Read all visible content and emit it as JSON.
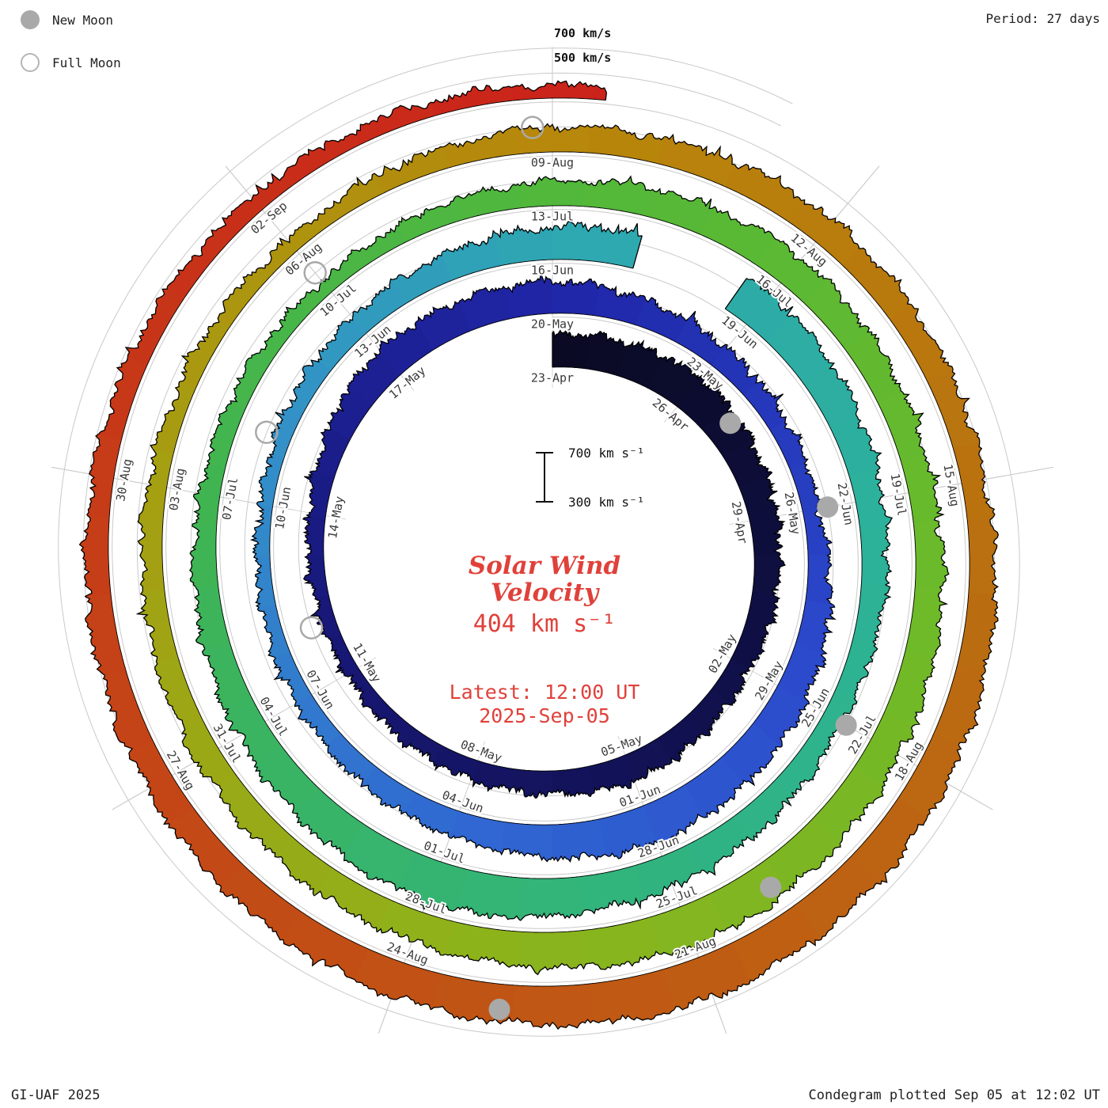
{
  "colors": {
    "accent_red": "#e0413a",
    "label_gray": "#3a3a3a",
    "grid": "#c9c9c9",
    "moon_gray": "#a9a9a9",
    "edge": "#000000",
    "text": "#222222"
  },
  "legend": {
    "new_moon": "New Moon",
    "full_moon": "Full Moon"
  },
  "header": {
    "period": "Period: 27 days"
  },
  "grid_labels": {
    "outer": "700 km/s",
    "inner": "500 km/s"
  },
  "scalebar": {
    "top": "700 km s⁻¹",
    "bottom": "300 km s⁻¹"
  },
  "center": {
    "title_line1": "Solar Wind",
    "title_line2": "Velocity",
    "value": "404 km s⁻¹",
    "latest_line1": "Latest: 12:00 UT",
    "latest_line2": "2025-Sep-05"
  },
  "footer": {
    "credit": "GI-UAF 2025",
    "plotted": "Condegram plotted Sep 05 at 12:02 UT"
  },
  "chart_data": {
    "type": "area",
    "variant": "condegram-spiral",
    "title": "Solar Wind Velocity",
    "units": "km/s",
    "period_days": 27,
    "start_date": "2025-04-23",
    "end_datetime": "2025-09-05 12:00 UT",
    "total_days": 135.5,
    "baseline_kms": 300,
    "latest_kms": 404,
    "grid_levels_kms": [
      500,
      700
    ],
    "velocity_range_kms": [
      300,
      700
    ],
    "data_gaps": [
      [
        55.2,
        56.6
      ]
    ],
    "samples": [
      {
        "d": 0,
        "label": "23-Apr",
        "v": 560
      },
      {
        "d": 3,
        "label": "26-Apr",
        "v": 600
      },
      {
        "d": 6,
        "label": "29-Apr",
        "v": 520
      },
      {
        "d": 9,
        "label": "02-May",
        "v": 470
      },
      {
        "d": 12,
        "label": "05-May",
        "v": 520
      },
      {
        "d": 15,
        "label": "08-May",
        "v": 455
      },
      {
        "d": 18,
        "label": "11-May",
        "v": 405
      },
      {
        "d": 21,
        "label": "14-May",
        "v": 435
      },
      {
        "d": 24,
        "label": "17-May",
        "v": 560
      },
      {
        "d": 27,
        "label": "20-May",
        "v": 555
      },
      {
        "d": 30,
        "label": "23-May",
        "v": 480
      },
      {
        "d": 33,
        "label": "26-May",
        "v": 430
      },
      {
        "d": 36,
        "label": "29-May",
        "v": 560
      },
      {
        "d": 39,
        "label": "01-Jun",
        "v": 620
      },
      {
        "d": 42,
        "label": "04-Jun",
        "v": 505
      },
      {
        "d": 45,
        "label": "07-Jun",
        "v": 440
      },
      {
        "d": 48,
        "label": "10-Jun",
        "v": 400
      },
      {
        "d": 51,
        "label": "13-Jun",
        "v": 470
      },
      {
        "d": 54,
        "label": "16-Jun",
        "v": 560
      },
      {
        "d": 57,
        "label": "19-Jun",
        "v": 610
      },
      {
        "d": 60,
        "label": "22-Jun",
        "v": 520
      },
      {
        "d": 63,
        "label": "25-Jun",
        "v": 460
      },
      {
        "d": 66,
        "label": "28-Jun",
        "v": 560
      },
      {
        "d": 69,
        "label": "01-Jul",
        "v": 640
      },
      {
        "d": 72,
        "label": "04-Jul",
        "v": 540
      },
      {
        "d": 75,
        "label": "07-Jul",
        "v": 460
      },
      {
        "d": 78,
        "label": "10-Jul",
        "v": 410
      },
      {
        "d": 81,
        "label": "13-Jul",
        "v": 500
      },
      {
        "d": 84,
        "label": "16-Jul",
        "v": 560
      },
      {
        "d": 87,
        "label": "19-Jul",
        "v": 500
      },
      {
        "d": 90,
        "label": "22-Jul",
        "v": 560
      },
      {
        "d": 93,
        "label": "25-Jul",
        "v": 630
      },
      {
        "d": 96,
        "label": "28-Jul",
        "v": 540
      },
      {
        "d": 99,
        "label": "31-Jul",
        "v": 500
      },
      {
        "d": 102,
        "label": "03-Aug",
        "v": 450
      },
      {
        "d": 105,
        "label": "06-Aug",
        "v": 410
      },
      {
        "d": 108,
        "label": "09-Aug",
        "v": 500
      },
      {
        "d": 111,
        "label": "12-Aug",
        "v": 520
      },
      {
        "d": 114,
        "label": "15-Aug",
        "v": 480
      },
      {
        "d": 117,
        "label": "18-Aug",
        "v": 570
      },
      {
        "d": 120,
        "label": "21-Aug",
        "v": 640
      },
      {
        "d": 123,
        "label": "24-Aug",
        "v": 580
      },
      {
        "d": 126,
        "label": "27-Aug",
        "v": 520
      },
      {
        "d": 129,
        "label": "30-Aug",
        "v": 470
      },
      {
        "d": 132,
        "label": "02-Sep",
        "v": 430
      },
      {
        "d": 135.5,
        "label": null,
        "v": 404
      }
    ],
    "moons": {
      "new_days": [
        4,
        33,
        63,
        92,
        122
      ],
      "full_days": [
        19,
        49,
        78,
        107.8
      ]
    },
    "colormap": [
      [
        0.0,
        "#0a0a22"
      ],
      [
        0.07,
        "#10104a"
      ],
      [
        0.14,
        "#181878"
      ],
      [
        0.2,
        "#2026a8"
      ],
      [
        0.26,
        "#2b49cc"
      ],
      [
        0.31,
        "#3069d2"
      ],
      [
        0.36,
        "#338fc8"
      ],
      [
        0.4,
        "#2ea8b2"
      ],
      [
        0.45,
        "#2cb298"
      ],
      [
        0.5,
        "#33b478"
      ],
      [
        0.55,
        "#3fb453"
      ],
      [
        0.6,
        "#52b83a"
      ],
      [
        0.65,
        "#6cba2a"
      ],
      [
        0.7,
        "#8cb41c"
      ],
      [
        0.75,
        "#a4a012"
      ],
      [
        0.8,
        "#b8860b"
      ],
      [
        0.85,
        "#ba6e10"
      ],
      [
        0.9,
        "#c05514"
      ],
      [
        0.95,
        "#c63c18"
      ],
      [
        1.0,
        "#cb221a"
      ]
    ]
  }
}
